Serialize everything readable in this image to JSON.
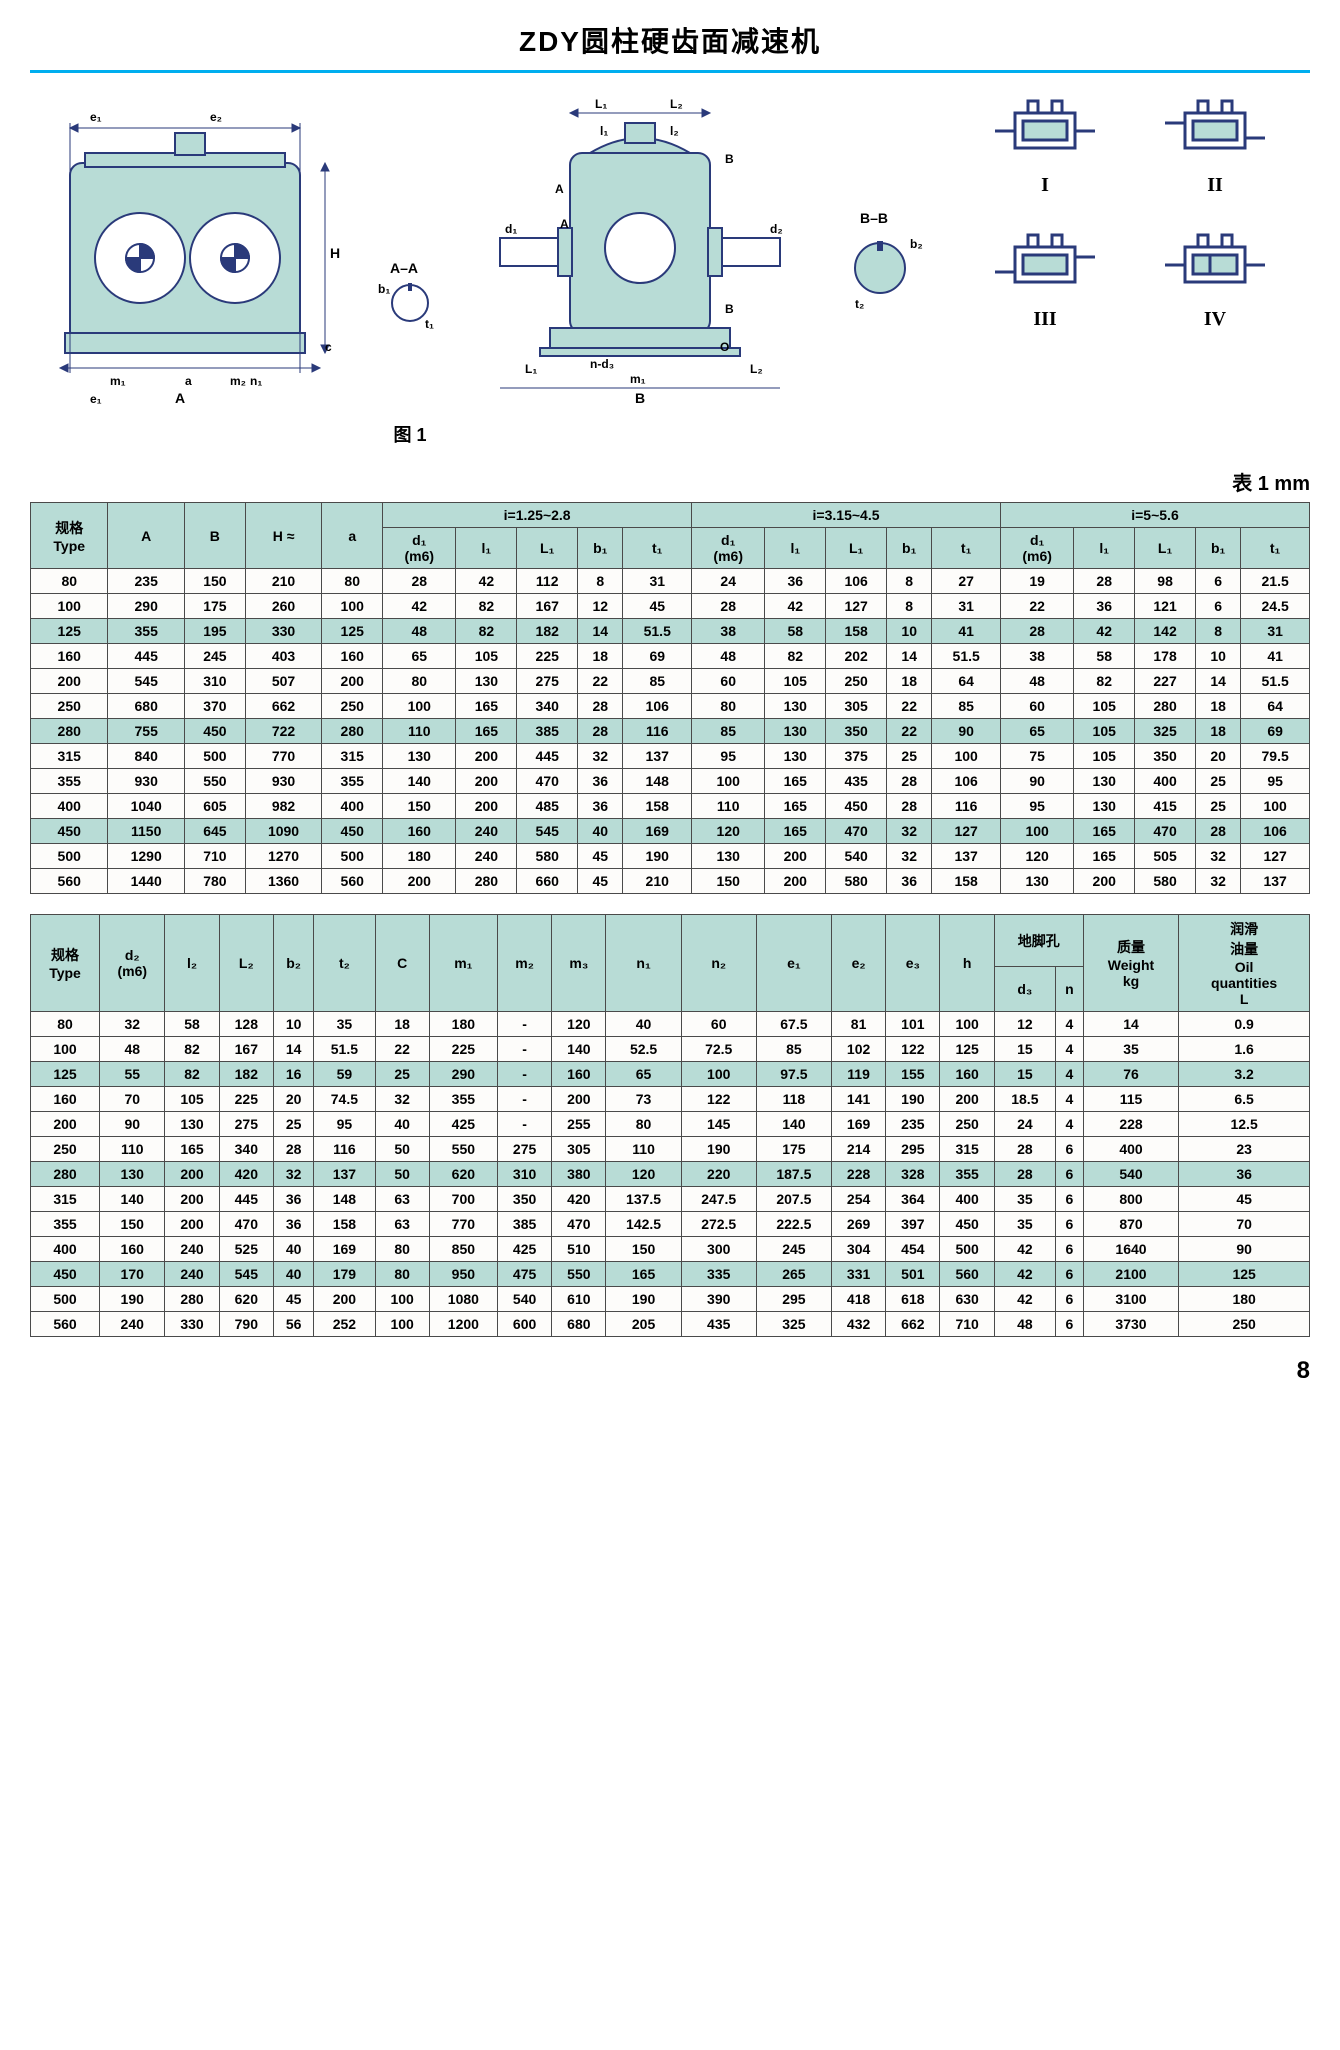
{
  "title": "ZDY圆柱硬齿面减速机",
  "figureLabel": "图 1",
  "tableCaption": "表 1 mm",
  "pageNumber": "8",
  "mountLabels": [
    "I",
    "II",
    "III",
    "IV"
  ],
  "colors": {
    "accent": "#00aeef",
    "shade": "#b8dcd6",
    "line": "#2a3a7a",
    "border": "#4a4a4a"
  },
  "table1": {
    "groupHeaders": [
      "i=1.25~2.8",
      "i=3.15~4.5",
      "i=5~5.6"
    ],
    "headers": [
      "规格\nType",
      "A",
      "B",
      "H ≈",
      "a",
      "d₁\n(m6)",
      "l₁",
      "L₁",
      "b₁",
      "t₁",
      "d₁\n(m6)",
      "l₁",
      "L₁",
      "b₁",
      "t₁",
      "d₁\n(m6)",
      "l₁",
      "L₁",
      "b₁",
      "t₁"
    ],
    "rows": [
      {
        "shade": false,
        "cells": [
          "80",
          "235",
          "150",
          "210",
          "80",
          "28",
          "42",
          "112",
          "8",
          "31",
          "24",
          "36",
          "106",
          "8",
          "27",
          "19",
          "28",
          "98",
          "6",
          "21.5"
        ]
      },
      {
        "shade": false,
        "cells": [
          "100",
          "290",
          "175",
          "260",
          "100",
          "42",
          "82",
          "167",
          "12",
          "45",
          "28",
          "42",
          "127",
          "8",
          "31",
          "22",
          "36",
          "121",
          "6",
          "24.5"
        ]
      },
      {
        "shade": true,
        "cells": [
          "125",
          "355",
          "195",
          "330",
          "125",
          "48",
          "82",
          "182",
          "14",
          "51.5",
          "38",
          "58",
          "158",
          "10",
          "41",
          "28",
          "42",
          "142",
          "8",
          "31"
        ]
      },
      {
        "shade": false,
        "cells": [
          "160",
          "445",
          "245",
          "403",
          "160",
          "65",
          "105",
          "225",
          "18",
          "69",
          "48",
          "82",
          "202",
          "14",
          "51.5",
          "38",
          "58",
          "178",
          "10",
          "41"
        ]
      },
      {
        "shade": false,
        "cells": [
          "200",
          "545",
          "310",
          "507",
          "200",
          "80",
          "130",
          "275",
          "22",
          "85",
          "60",
          "105",
          "250",
          "18",
          "64",
          "48",
          "82",
          "227",
          "14",
          "51.5"
        ]
      },
      {
        "shade": false,
        "cells": [
          "250",
          "680",
          "370",
          "662",
          "250",
          "100",
          "165",
          "340",
          "28",
          "106",
          "80",
          "130",
          "305",
          "22",
          "85",
          "60",
          "105",
          "280",
          "18",
          "64"
        ]
      },
      {
        "shade": true,
        "cells": [
          "280",
          "755",
          "450",
          "722",
          "280",
          "110",
          "165",
          "385",
          "28",
          "116",
          "85",
          "130",
          "350",
          "22",
          "90",
          "65",
          "105",
          "325",
          "18",
          "69"
        ]
      },
      {
        "shade": false,
        "cells": [
          "315",
          "840",
          "500",
          "770",
          "315",
          "130",
          "200",
          "445",
          "32",
          "137",
          "95",
          "130",
          "375",
          "25",
          "100",
          "75",
          "105",
          "350",
          "20",
          "79.5"
        ]
      },
      {
        "shade": false,
        "cells": [
          "355",
          "930",
          "550",
          "930",
          "355",
          "140",
          "200",
          "470",
          "36",
          "148",
          "100",
          "165",
          "435",
          "28",
          "106",
          "90",
          "130",
          "400",
          "25",
          "95"
        ]
      },
      {
        "shade": false,
        "cells": [
          "400",
          "1040",
          "605",
          "982",
          "400",
          "150",
          "200",
          "485",
          "36",
          "158",
          "110",
          "165",
          "450",
          "28",
          "116",
          "95",
          "130",
          "415",
          "25",
          "100"
        ]
      },
      {
        "shade": true,
        "cells": [
          "450",
          "1150",
          "645",
          "1090",
          "450",
          "160",
          "240",
          "545",
          "40",
          "169",
          "120",
          "165",
          "470",
          "32",
          "127",
          "100",
          "165",
          "470",
          "28",
          "106"
        ]
      },
      {
        "shade": false,
        "cells": [
          "500",
          "1290",
          "710",
          "1270",
          "500",
          "180",
          "240",
          "580",
          "45",
          "190",
          "130",
          "200",
          "540",
          "32",
          "137",
          "120",
          "165",
          "505",
          "32",
          "127"
        ]
      },
      {
        "shade": false,
        "cells": [
          "560",
          "1440",
          "780",
          "1360",
          "560",
          "200",
          "280",
          "660",
          "45",
          "210",
          "150",
          "200",
          "580",
          "36",
          "158",
          "130",
          "200",
          "580",
          "32",
          "137"
        ]
      }
    ]
  },
  "table2": {
    "headers": [
      "规格\nType",
      "d₂\n(m6)",
      "l₂",
      "L₂",
      "b₂",
      "t₂",
      "C",
      "m₁",
      "m₂",
      "m₃",
      "n₁",
      "n₂",
      "e₁",
      "e₂",
      "e₃",
      "h",
      "地脚孔",
      "质量\nWeight\nkg",
      "润滑\n油量\nOil\nquantities\nL"
    ],
    "subHeaders": [
      "d₃",
      "n"
    ],
    "rows": [
      {
        "shade": false,
        "cells": [
          "80",
          "32",
          "58",
          "128",
          "10",
          "35",
          "18",
          "180",
          "-",
          "120",
          "40",
          "60",
          "67.5",
          "81",
          "101",
          "100",
          "12",
          "4",
          "14",
          "0.9"
        ]
      },
      {
        "shade": false,
        "cells": [
          "100",
          "48",
          "82",
          "167",
          "14",
          "51.5",
          "22",
          "225",
          "-",
          "140",
          "52.5",
          "72.5",
          "85",
          "102",
          "122",
          "125",
          "15",
          "4",
          "35",
          "1.6"
        ]
      },
      {
        "shade": true,
        "cells": [
          "125",
          "55",
          "82",
          "182",
          "16",
          "59",
          "25",
          "290",
          "-",
          "160",
          "65",
          "100",
          "97.5",
          "119",
          "155",
          "160",
          "15",
          "4",
          "76",
          "3.2"
        ]
      },
      {
        "shade": false,
        "cells": [
          "160",
          "70",
          "105",
          "225",
          "20",
          "74.5",
          "32",
          "355",
          "-",
          "200",
          "73",
          "122",
          "118",
          "141",
          "190",
          "200",
          "18.5",
          "4",
          "115",
          "6.5"
        ]
      },
      {
        "shade": false,
        "cells": [
          "200",
          "90",
          "130",
          "275",
          "25",
          "95",
          "40",
          "425",
          "-",
          "255",
          "80",
          "145",
          "140",
          "169",
          "235",
          "250",
          "24",
          "4",
          "228",
          "12.5"
        ]
      },
      {
        "shade": false,
        "cells": [
          "250",
          "110",
          "165",
          "340",
          "28",
          "116",
          "50",
          "550",
          "275",
          "305",
          "110",
          "190",
          "175",
          "214",
          "295",
          "315",
          "28",
          "6",
          "400",
          "23"
        ]
      },
      {
        "shade": true,
        "cells": [
          "280",
          "130",
          "200",
          "420",
          "32",
          "137",
          "50",
          "620",
          "310",
          "380",
          "120",
          "220",
          "187.5",
          "228",
          "328",
          "355",
          "28",
          "6",
          "540",
          "36"
        ]
      },
      {
        "shade": false,
        "cells": [
          "315",
          "140",
          "200",
          "445",
          "36",
          "148",
          "63",
          "700",
          "350",
          "420",
          "137.5",
          "247.5",
          "207.5",
          "254",
          "364",
          "400",
          "35",
          "6",
          "800",
          "45"
        ]
      },
      {
        "shade": false,
        "cells": [
          "355",
          "150",
          "200",
          "470",
          "36",
          "158",
          "63",
          "770",
          "385",
          "470",
          "142.5",
          "272.5",
          "222.5",
          "269",
          "397",
          "450",
          "35",
          "6",
          "870",
          "70"
        ]
      },
      {
        "shade": false,
        "cells": [
          "400",
          "160",
          "240",
          "525",
          "40",
          "169",
          "80",
          "850",
          "425",
          "510",
          "150",
          "300",
          "245",
          "304",
          "454",
          "500",
          "42",
          "6",
          "1640",
          "90"
        ]
      },
      {
        "shade": true,
        "cells": [
          "450",
          "170",
          "240",
          "545",
          "40",
          "179",
          "80",
          "950",
          "475",
          "550",
          "165",
          "335",
          "265",
          "331",
          "501",
          "560",
          "42",
          "6",
          "2100",
          "125"
        ]
      },
      {
        "shade": false,
        "cells": [
          "500",
          "190",
          "280",
          "620",
          "45",
          "200",
          "100",
          "1080",
          "540",
          "610",
          "190",
          "390",
          "295",
          "418",
          "618",
          "630",
          "42",
          "6",
          "3100",
          "180"
        ]
      },
      {
        "shade": false,
        "cells": [
          "560",
          "240",
          "330",
          "790",
          "56",
          "252",
          "100",
          "1200",
          "600",
          "680",
          "205",
          "435",
          "325",
          "432",
          "662",
          "710",
          "48",
          "6",
          "3730",
          "250"
        ]
      }
    ]
  }
}
